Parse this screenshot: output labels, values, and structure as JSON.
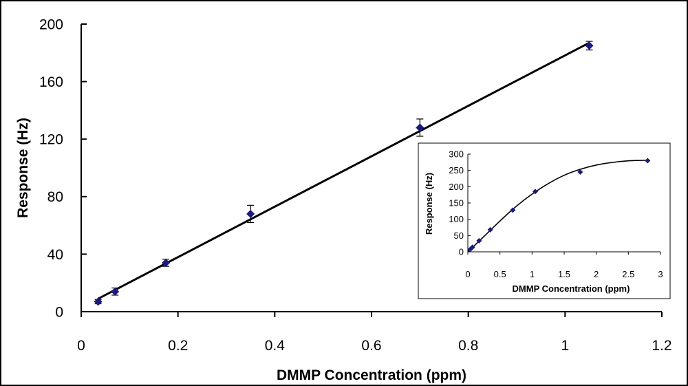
{
  "chart_data": [
    {
      "type": "scatter",
      "title": "",
      "xlabel": "DMMP Concentration (ppm)",
      "ylabel": "Response (Hz)",
      "xlim": [
        0,
        1.2
      ],
      "ylim": [
        0,
        200
      ],
      "x_ticks": [
        "0",
        "0.2",
        "0.4",
        "0.6",
        "0.8",
        "1",
        "1.2"
      ],
      "y_ticks": [
        "0",
        "40",
        "80",
        "120",
        "160",
        "200"
      ],
      "grid": false,
      "series": [
        {
          "name": "Response",
          "color": "#1a1a80",
          "marker": "diamond",
          "x": [
            0.035,
            0.07,
            0.175,
            0.35,
            0.7,
            1.05
          ],
          "y": [
            7,
            14,
            34,
            68,
            128,
            185
          ],
          "error": [
            1.5,
            2.5,
            2.5,
            6,
            6,
            3
          ]
        }
      ],
      "fit_line": {
        "x": [
          0.035,
          1.05
        ],
        "y": [
          9,
          187
        ],
        "color": "#000000"
      }
    },
    {
      "type": "scatter",
      "title": "",
      "xlabel": "DMMP Concentration (ppm)",
      "ylabel": "Response (Hz)",
      "xlim": [
        0,
        3
      ],
      "ylim": [
        0,
        300
      ],
      "x_ticks": [
        "0",
        "0.5",
        "1",
        "1.5",
        "2",
        "2.5",
        "3"
      ],
      "y_ticks": [
        "0",
        "50",
        "100",
        "150",
        "200",
        "250",
        "300"
      ],
      "grid": false,
      "series": [
        {
          "name": "Response",
          "color": "#1a1a80",
          "marker": "diamond",
          "x": [
            0.035,
            0.07,
            0.175,
            0.35,
            0.7,
            1.05,
            1.75,
            2.8
          ],
          "y": [
            7,
            14,
            34,
            68,
            128,
            185,
            245,
            280
          ]
        }
      ],
      "fit_curve": {
        "x": [
          0,
          0.25,
          0.5,
          0.75,
          1.0,
          1.25,
          1.5,
          1.75,
          2.0,
          2.25,
          2.5,
          2.75,
          2.8
        ],
        "y": [
          0,
          47,
          95,
          140,
          178,
          210,
          236,
          254,
          267,
          275,
          280,
          281,
          281
        ],
        "color": "#000000"
      }
    }
  ]
}
